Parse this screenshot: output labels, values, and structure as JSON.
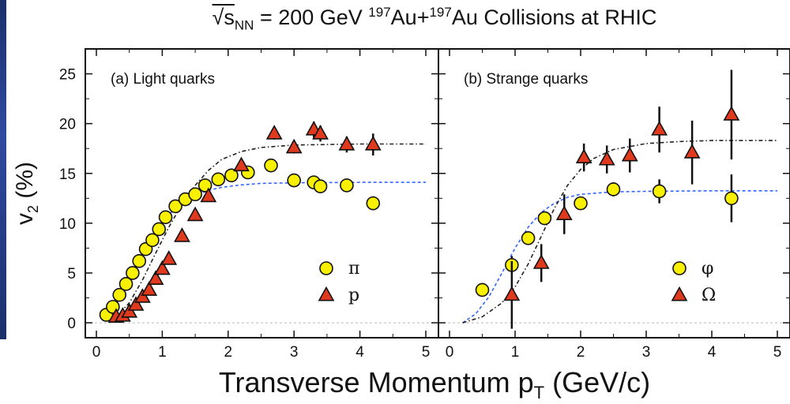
{
  "chart_data": [
    {
      "type": "scatter",
      "panel_label": "(a) Light quarks",
      "xlim": [
        0,
        5
      ],
      "ylim": [
        -1.5,
        27.5
      ],
      "xticks": [
        "0",
        "1",
        "2",
        "3",
        "4",
        "5"
      ],
      "yticks": [
        "0",
        "5",
        "10",
        "15",
        "20",
        "25"
      ],
      "series": [
        {
          "name": "π",
          "marker": "circle",
          "color": "#f7f000",
          "points": [
            [
              0.15,
              0.8
            ],
            [
              0.25,
              1.6
            ],
            [
              0.35,
              2.8
            ],
            [
              0.45,
              3.9
            ],
            [
              0.55,
              5.0
            ],
            [
              0.65,
              6.2
            ],
            [
              0.75,
              7.4
            ],
            [
              0.85,
              8.3
            ],
            [
              0.95,
              9.4
            ],
            [
              1.05,
              10.6
            ],
            [
              1.2,
              11.7
            ],
            [
              1.35,
              12.4
            ],
            [
              1.5,
              12.9
            ],
            [
              1.65,
              13.8
            ],
            [
              1.85,
              14.4
            ],
            [
              2.05,
              14.8
            ],
            [
              2.3,
              15.1
            ],
            [
              2.65,
              15.8
            ],
            [
              3.0,
              14.3
            ],
            [
              3.3,
              14.1
            ],
            [
              3.4,
              13.7
            ],
            [
              3.8,
              13.8
            ],
            [
              4.2,
              12.0
            ]
          ],
          "errors": [
            0.2,
            0.2,
            0.2,
            0.2,
            0.2,
            0.2,
            0.2,
            0.2,
            0.2,
            0.2,
            0.2,
            0.2,
            0.2,
            0.2,
            0.2,
            0.2,
            0.2,
            0.2,
            0.3,
            0.3,
            0.3,
            0.5,
            0.7
          ],
          "fit_line": {
            "color": "#3366ff",
            "points": [
              [
                0.1,
                0.3
              ],
              [
                0.3,
                1.8
              ],
              [
                0.5,
                4.3
              ],
              [
                0.7,
                6.9
              ],
              [
                0.9,
                9.1
              ],
              [
                1.1,
                10.9
              ],
              [
                1.3,
                12.0
              ],
              [
                1.5,
                12.8
              ],
              [
                1.7,
                13.3
              ],
              [
                1.9,
                13.6
              ],
              [
                2.2,
                13.85
              ],
              [
                2.5,
                14.0
              ],
              [
                3.0,
                14.05
              ],
              [
                4.0,
                14.1
              ],
              [
                5.0,
                14.1
              ]
            ]
          }
        },
        {
          "name": "p",
          "marker": "triangle",
          "color": "#e03a1e",
          "points": [
            [
              0.3,
              0.6
            ],
            [
              0.4,
              0.7
            ],
            [
              0.5,
              1.1
            ],
            [
              0.6,
              1.8
            ],
            [
              0.7,
              2.6
            ],
            [
              0.8,
              3.3
            ],
            [
              0.9,
              4.4
            ],
            [
              1.0,
              5.4
            ],
            [
              1.1,
              6.4
            ],
            [
              1.3,
              8.7
            ],
            [
              1.5,
              10.8
            ],
            [
              1.7,
              12.7
            ],
            [
              2.2,
              15.8
            ],
            [
              2.7,
              19.0
            ],
            [
              3.0,
              17.6
            ],
            [
              3.3,
              19.4
            ],
            [
              3.4,
              19.0
            ],
            [
              3.8,
              17.9
            ],
            [
              4.2,
              17.9
            ]
          ],
          "errors": [
            0.2,
            0.2,
            0.2,
            0.2,
            0.2,
            0.2,
            0.2,
            0.2,
            0.3,
            0.3,
            0.3,
            0.4,
            0.5,
            0.6,
            0.6,
            0.8,
            0.8,
            0.8,
            1.1
          ],
          "fit_line": {
            "color": "#222222",
            "points": [
              [
                0.1,
                0.2
              ],
              [
                0.3,
                0.6
              ],
              [
                0.5,
                2.0
              ],
              [
                0.7,
                4.3
              ],
              [
                0.9,
                7.0
              ],
              [
                1.1,
                9.6
              ],
              [
                1.3,
                11.9
              ],
              [
                1.5,
                13.8
              ],
              [
                1.7,
                15.3
              ],
              [
                1.9,
                16.4
              ],
              [
                2.2,
                17.2
              ],
              [
                2.5,
                17.6
              ],
              [
                3.0,
                17.85
              ],
              [
                4.0,
                17.95
              ],
              [
                5.0,
                17.95
              ]
            ]
          }
        }
      ]
    },
    {
      "type": "scatter",
      "panel_label": "(b) Strange quarks",
      "xlim": [
        0,
        5
      ],
      "ylim": [
        -1.5,
        27.5
      ],
      "xticks": [
        "0",
        "1",
        "2",
        "3",
        "4",
        "5"
      ],
      "yticks": [
        "0",
        "5",
        "10",
        "15",
        "20",
        "25"
      ],
      "series": [
        {
          "name": "φ",
          "marker": "circle",
          "color": "#f7f000",
          "points": [
            [
              0.5,
              3.3
            ],
            [
              0.95,
              5.8
            ],
            [
              1.2,
              8.5
            ],
            [
              1.45,
              10.5
            ],
            [
              2.0,
              12.0
            ],
            [
              2.5,
              13.4
            ],
            [
              3.2,
              13.2
            ],
            [
              4.3,
              12.5
            ]
          ],
          "errors": [
            0.4,
            0.9,
            0.5,
            0.5,
            0.5,
            0.7,
            1.2,
            2.4
          ],
          "fit_line": {
            "color": "#3366ff",
            "points": [
              [
                0.2,
                0.0
              ],
              [
                0.4,
                0.9
              ],
              [
                0.6,
                2.6
              ],
              [
                0.8,
                5.0
              ],
              [
                1.0,
                7.5
              ],
              [
                1.2,
                9.6
              ],
              [
                1.4,
                11.1
              ],
              [
                1.6,
                12.0
              ],
              [
                1.8,
                12.6
              ],
              [
                2.0,
                12.9
              ],
              [
                2.5,
                13.15
              ],
              [
                3.0,
                13.2
              ],
              [
                4.0,
                13.25
              ],
              [
                5.0,
                13.25
              ]
            ]
          }
        },
        {
          "name": "Ω",
          "marker": "triangle",
          "color": "#e03a1e",
          "points": [
            [
              0.95,
              2.8
            ],
            [
              1.4,
              6.0
            ],
            [
              1.75,
              10.9
            ],
            [
              2.05,
              16.6
            ],
            [
              2.4,
              16.4
            ],
            [
              2.75,
              16.8
            ],
            [
              3.2,
              19.4
            ],
            [
              3.7,
              17.1
            ],
            [
              4.3,
              20.9
            ]
          ],
          "errors": [
            3.4,
            1.9,
            2.0,
            1.4,
            1.4,
            1.7,
            2.3,
            3.2,
            4.5
          ],
          "fit_line": {
            "color": "#222222",
            "points": [
              [
                0.2,
                0.0
              ],
              [
                0.5,
                0.6
              ],
              [
                0.8,
                2.0
              ],
              [
                1.0,
                3.6
              ],
              [
                1.2,
                5.9
              ],
              [
                1.4,
                8.7
              ],
              [
                1.6,
                11.5
              ],
              [
                1.8,
                13.8
              ],
              [
                2.0,
                15.4
              ],
              [
                2.2,
                16.5
              ],
              [
                2.5,
                17.4
              ],
              [
                3.0,
                18.0
              ],
              [
                3.5,
                18.2
              ],
              [
                4.0,
                18.3
              ],
              [
                5.0,
                18.3
              ]
            ]
          }
        }
      ]
    }
  ],
  "title": {
    "sqrt_s": "√s",
    "nn": "NN",
    "energy": " = 200 GeV ",
    "mass1": "197",
    "au1": "Au+",
    "mass2": "197",
    "rest": "Au Collisions at RHIC"
  },
  "ylabel": {
    "main": "v",
    "sub": "2",
    "unit": " (%)"
  },
  "xlabel": {
    "main": "Transverse Momentum p",
    "sub": "T",
    "unit": " (GeV/c)"
  },
  "colors": {
    "left_edge": "#1b2f6b"
  }
}
